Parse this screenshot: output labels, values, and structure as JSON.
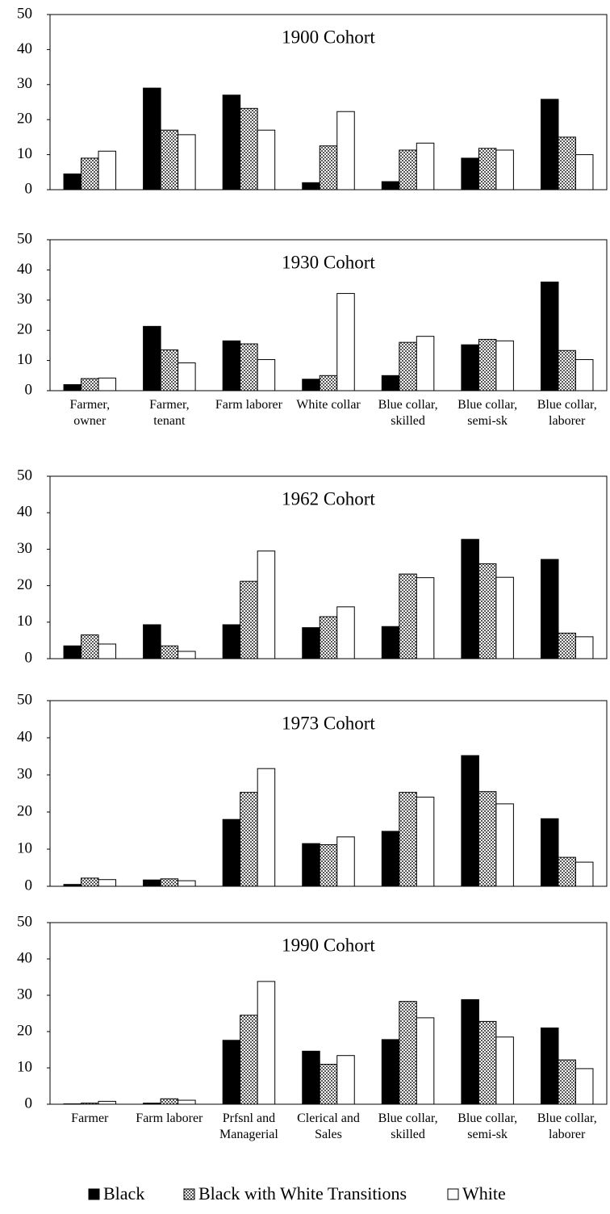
{
  "chart_data": [
    {
      "type": "bar",
      "title": "1900 Cohort",
      "categories": [
        null,
        null,
        null,
        null,
        null,
        null,
        null
      ],
      "series": [
        {
          "color": "#000000",
          "values": [
            4.5,
            29,
            27,
            2,
            2.3,
            9,
            25.8
          ]
        },
        {
          "color": "#888888",
          "pattern": "checker",
          "values": [
            9,
            17,
            23.2,
            12.5,
            11.3,
            11.8,
            15
          ]
        },
        {
          "color": "#ffffff",
          "values": [
            11,
            15.7,
            17,
            22.3,
            13.3,
            11.3,
            10
          ]
        }
      ],
      "ylim": [
        0,
        50
      ],
      "yticks": [
        0,
        10,
        20,
        30,
        40,
        50
      ]
    },
    {
      "type": "bar",
      "title": "1930 Cohort",
      "categories": [
        "Farmer, owner",
        "Farmer, tenant",
        "Farm laborer",
        "White collar",
        "Blue collar, skilled",
        "Blue collar, semi-sk",
        "Blue collar, laborer"
      ],
      "series": [
        {
          "color": "#000000",
          "values": [
            2,
            21.3,
            16.5,
            3.8,
            5,
            15.2,
            36
          ]
        },
        {
          "color": "#888888",
          "pattern": "checker",
          "values": [
            4,
            13.5,
            15.5,
            5,
            16,
            17,
            13.3
          ]
        },
        {
          "color": "#ffffff",
          "values": [
            4.2,
            9.2,
            10.3,
            32.2,
            18,
            16.5,
            10.3
          ]
        }
      ],
      "ylim": [
        0,
        50
      ],
      "yticks": [
        0,
        10,
        20,
        30,
        40,
        50
      ]
    },
    {
      "type": "bar",
      "title": "1962 Cohort",
      "categories": [
        null,
        null,
        null,
        null,
        null,
        null,
        null
      ],
      "series": [
        {
          "color": "#000000",
          "values": [
            3.5,
            9.3,
            9.3,
            8.5,
            8.8,
            32.7,
            27.2
          ]
        },
        {
          "color": "#888888",
          "pattern": "checker",
          "values": [
            6.5,
            3.5,
            21.2,
            11.5,
            23.2,
            26,
            7
          ]
        },
        {
          "color": "#ffffff",
          "values": [
            4,
            2,
            29.5,
            14.2,
            22.2,
            22.3,
            6
          ]
        }
      ],
      "ylim": [
        0,
        50
      ],
      "yticks": [
        0,
        10,
        20,
        30,
        40,
        50
      ]
    },
    {
      "type": "bar",
      "title": "1973 Cohort",
      "categories": [
        null,
        null,
        null,
        null,
        null,
        null,
        null
      ],
      "series": [
        {
          "color": "#000000",
          "values": [
            0.5,
            1.7,
            18,
            11.5,
            14.8,
            35.2,
            18.2
          ]
        },
        {
          "color": "#888888",
          "pattern": "checker",
          "values": [
            2.2,
            2,
            25.3,
            11.2,
            25.3,
            25.5,
            7.8
          ]
        },
        {
          "color": "#ffffff",
          "values": [
            1.8,
            1.5,
            31.7,
            13.3,
            24,
            22.2,
            6.5
          ]
        }
      ],
      "ylim": [
        0,
        50
      ],
      "yticks": [
        0,
        10,
        20,
        30,
        40,
        50
      ]
    },
    {
      "type": "bar",
      "title": "1990 Cohort",
      "categories": [
        "Farmer",
        "Farm laborer",
        "Prfsnl and Managerial",
        "Clerical and Sales",
        "Blue collar, skilled",
        "Blue collar, semi-sk",
        "Blue collar, laborer"
      ],
      "series": [
        {
          "name": "Black",
          "color": "#000000",
          "values": [
            0.1,
            0.3,
            17.6,
            14.6,
            17.8,
            28.8,
            21
          ]
        },
        {
          "name": "Black with White Transitions",
          "color": "#888888",
          "pattern": "checker",
          "values": [
            0.3,
            1.5,
            24.5,
            11,
            28.3,
            22.8,
            12.2
          ]
        },
        {
          "name": "White",
          "color": "#ffffff",
          "values": [
            0.8,
            1.1,
            33.8,
            13.4,
            23.8,
            18.5,
            9.8
          ]
        }
      ],
      "ylim": [
        0,
        50
      ],
      "yticks": [
        0,
        10,
        20,
        30,
        40,
        50
      ]
    }
  ]
}
